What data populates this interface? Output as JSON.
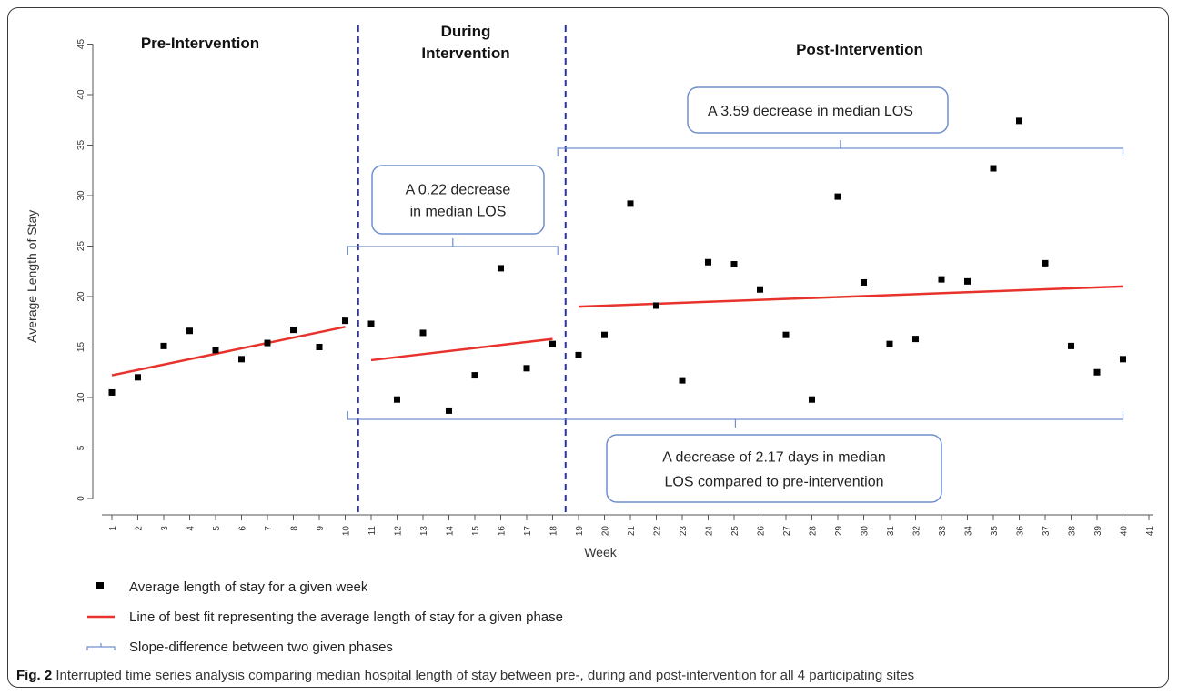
{
  "caption": {
    "prefix": "Fig. 2",
    "text": "Interrupted time series analysis comparing median hospital length of stay between pre-, during and post-intervention for all 4 participating sites"
  },
  "phases": [
    {
      "label_lines": [
        "Pre-Intervention"
      ]
    },
    {
      "label_lines": [
        "During",
        "Intervention"
      ]
    },
    {
      "label_lines": [
        "Post-Intervention"
      ]
    }
  ],
  "callouts": {
    "during": [
      "A 0.22 decrease",
      "in median LOS"
    ],
    "post": [
      "A 3.59 decrease in median LOS"
    ],
    "overall": [
      "A decrease of 2.17 days in median",
      "LOS compared to pre-intervention"
    ]
  },
  "legend": [
    {
      "symbol": "square",
      "text": "Average length of stay for a given week"
    },
    {
      "symbol": "line",
      "text": "Line of best fit representing the average length of stay for a given phase"
    },
    {
      "symbol": "bracket",
      "text": "Slope-difference between two given phases"
    }
  ],
  "colors": {
    "points": "#000000",
    "fit_line": "#e8322c",
    "divider": "#2b2fb0",
    "bracket": "#6f8fcf",
    "callout_border": "#6f8fcf"
  },
  "chart_data": {
    "type": "scatter",
    "xlabel": "Week",
    "ylabel": "Average Length of Stay",
    "xlim": [
      1,
      41
    ],
    "ylim": [
      0,
      45
    ],
    "xticks": [
      1,
      2,
      3,
      4,
      5,
      6,
      7,
      8,
      9,
      10,
      11,
      12,
      13,
      14,
      15,
      16,
      17,
      18,
      19,
      20,
      21,
      22,
      23,
      24,
      25,
      26,
      27,
      28,
      29,
      30,
      31,
      32,
      33,
      34,
      35,
      36,
      37,
      38,
      39,
      40,
      41
    ],
    "yticks": [
      0,
      5,
      10,
      15,
      20,
      25,
      30,
      35,
      40,
      45
    ],
    "series": [
      {
        "x": [
          1,
          2,
          3,
          4,
          5,
          6,
          7,
          8,
          9,
          10,
          11,
          12,
          13,
          14,
          15,
          16,
          17,
          18,
          19,
          20,
          21,
          22,
          23,
          24,
          25,
          26,
          27,
          28,
          29,
          30,
          31,
          32,
          33,
          34,
          35,
          36,
          37,
          38,
          39,
          40
        ],
        "y": [
          10.5,
          12.0,
          15.1,
          16.6,
          14.7,
          13.8,
          15.4,
          16.7,
          15.0,
          17.6,
          17.3,
          9.8,
          16.4,
          8.7,
          12.2,
          22.8,
          12.9,
          15.3,
          14.2,
          16.2,
          29.2,
          19.1,
          11.7,
          23.4,
          23.2,
          20.7,
          16.2,
          9.8,
          29.9,
          21.4,
          15.3,
          15.8,
          21.7,
          21.5,
          32.7,
          37.4,
          23.3,
          15.1,
          12.5,
          13.8
        ]
      }
    ],
    "fit_lines": [
      {
        "x": [
          1,
          10
        ],
        "y": [
          12.2,
          17.0
        ]
      },
      {
        "x": [
          11,
          18
        ],
        "y": [
          13.7,
          15.8
        ]
      },
      {
        "x": [
          19,
          40
        ],
        "y": [
          19.0,
          21.0
        ]
      }
    ],
    "phase_dividers_x": [
      10.5,
      18.5
    ]
  }
}
